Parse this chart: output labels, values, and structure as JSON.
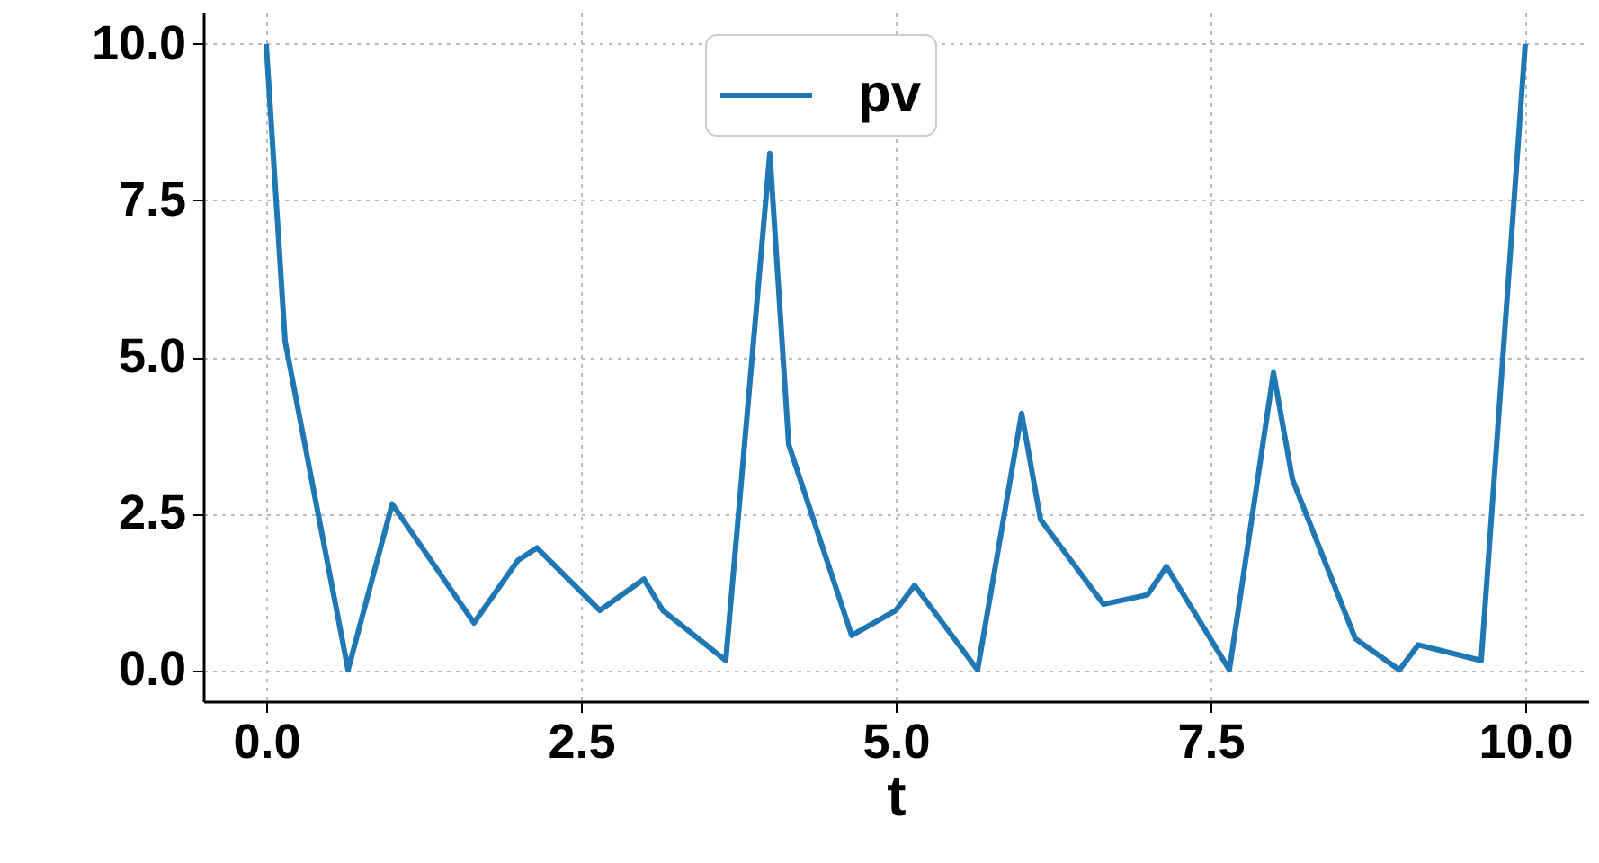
{
  "chart_data": {
    "type": "line",
    "xlabel": "t",
    "x": [
      0,
      0.15,
      0.65,
      1.0,
      1.65,
      2.0,
      2.15,
      2.65,
      3.0,
      3.15,
      3.65,
      4.0,
      4.15,
      4.65,
      5.0,
      5.15,
      5.65,
      6.0,
      6.15,
      6.65,
      7.0,
      7.15,
      7.65,
      8.0,
      8.15,
      8.65,
      9.0,
      9.15,
      9.65,
      10.0
    ],
    "series": [
      {
        "name": "pv",
        "color": "#1f77b4",
        "values": [
          10,
          5.25,
          0,
          2.65,
          0.75,
          1.75,
          1.95,
          0.95,
          1.45,
          0.95,
          0.15,
          8.25,
          3.6,
          0.55,
          0.95,
          1.35,
          0,
          4.1,
          2.4,
          1.05,
          1.2,
          1.65,
          0,
          4.75,
          3.05,
          0.5,
          0,
          0.4,
          0.15,
          10
        ]
      }
    ],
    "xlim": [
      -0.5,
      10.5
    ],
    "ylim": [
      -0.5,
      10.5
    ],
    "xticks": [
      {
        "value": 0,
        "label": "0.0"
      },
      {
        "value": 2.5,
        "label": "2.5"
      },
      {
        "value": 5,
        "label": "5.0"
      },
      {
        "value": 7.5,
        "label": "7.5"
      },
      {
        "value": 10,
        "label": "10.0"
      }
    ],
    "yticks": [
      {
        "value": 0,
        "label": "0.0"
      },
      {
        "value": 2.5,
        "label": "2.5"
      },
      {
        "value": 5,
        "label": "5.0"
      },
      {
        "value": 7.5,
        "label": "7.5"
      },
      {
        "value": 10,
        "label": "10.0"
      }
    ],
    "grid": true,
    "legend": "top",
    "marker": "none",
    "line_style": "solid"
  }
}
